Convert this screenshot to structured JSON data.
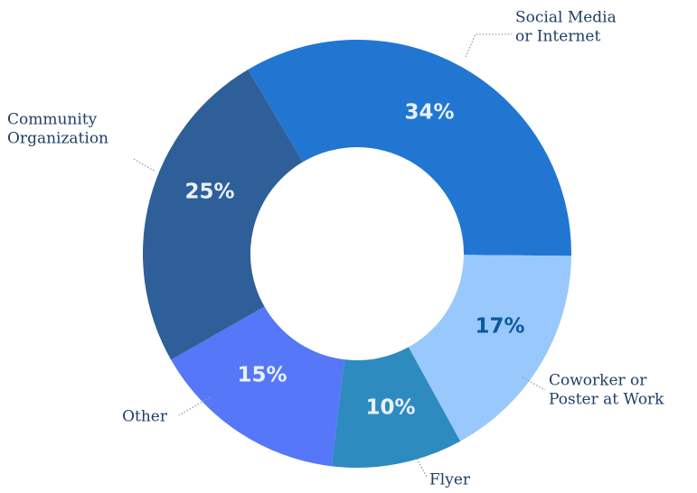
{
  "chart_data": {
    "type": "donut",
    "categories": [
      [
        "Social Media",
        "or Internet"
      ],
      [
        "Coworker or",
        "Poster at Work"
      ],
      [
        "Flyer"
      ],
      [
        "Other"
      ],
      [
        "Community",
        "Organization"
      ]
    ],
    "values": [
      34,
      17,
      10,
      15,
      25
    ],
    "value_labels": [
      "34%",
      "17%",
      "10%",
      "15%",
      "25%"
    ],
    "colors": [
      "#2176d2",
      "#99c9fc",
      "#2e8bbf",
      "#5577f8",
      "#2f5f98"
    ],
    "label_colors": [
      "#e9f1ff",
      "#0d5a9a",
      "#e9f1ff",
      "#e9f1ff",
      "#e9f1ff"
    ]
  }
}
